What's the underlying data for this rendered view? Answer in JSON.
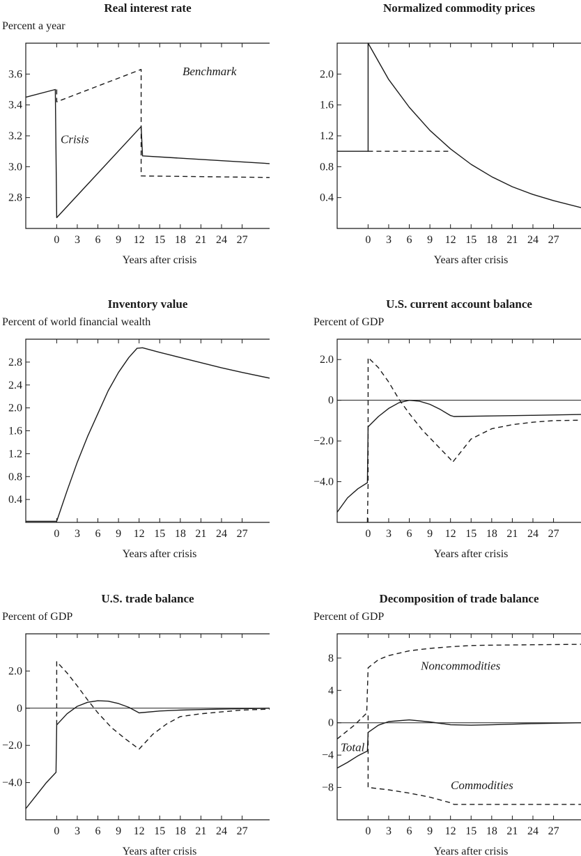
{
  "chart_data": [
    {
      "type": "line",
      "title": "Real interest rate",
      "subtitle": "Percent a year",
      "xlabel": "Years after crisis",
      "ylabel": "",
      "xlim": [
        -4.5,
        31
      ],
      "ylim": [
        2.6,
        3.8
      ],
      "xticks": [
        0,
        3,
        6,
        9,
        12,
        15,
        18,
        21,
        24,
        27
      ],
      "yticks": [
        2.8,
        3.0,
        3.2,
        3.4,
        3.6
      ],
      "ytick_labels": [
        "2.8",
        "3.0",
        "3.2",
        "3.4",
        "3.6"
      ],
      "zero_line": false,
      "grid": false,
      "annotations": [
        "Benchmark",
        "Crisis"
      ],
      "series": [
        {
          "name": "Crisis",
          "style": "solid",
          "points": [
            [
              -4.5,
              3.45
            ],
            [
              -0.2,
              3.5
            ],
            [
              0,
              2.67
            ],
            [
              12.3,
              3.26
            ],
            [
              12.5,
              3.07
            ],
            [
              31,
              3.02
            ]
          ]
        },
        {
          "name": "Benchmark",
          "style": "dashed",
          "points": [
            [
              0,
              3.5
            ],
            [
              0,
              3.42
            ],
            [
              12.3,
              3.63
            ],
            [
              12.3,
              2.94
            ],
            [
              31,
              2.93
            ]
          ]
        }
      ]
    },
    {
      "type": "line",
      "title": "Normalized commodity prices",
      "subtitle": "",
      "xlabel": "Years after crisis",
      "ylabel": "",
      "xlim": [
        -4.5,
        31
      ],
      "ylim": [
        0,
        2.4
      ],
      "xticks": [
        0,
        3,
        6,
        9,
        12,
        15,
        18,
        21,
        24,
        27
      ],
      "yticks": [
        0.4,
        0.8,
        1.2,
        1.6,
        2.0
      ],
      "ytick_labels": [
        "0.4",
        "0.8",
        "1.2",
        "1.6",
        "2.0"
      ],
      "zero_line": false,
      "grid": false,
      "annotations": [],
      "series": [
        {
          "name": "",
          "style": "solid",
          "points": [
            [
              -4.5,
              1.0
            ],
            [
              0,
              1.0
            ],
            [
              0,
              2.4
            ],
            [
              3,
              1.93
            ],
            [
              6,
              1.57
            ],
            [
              9,
              1.27
            ],
            [
              12,
              1.03
            ],
            [
              15,
              0.83
            ],
            [
              18,
              0.67
            ],
            [
              21,
              0.54
            ],
            [
              24,
              0.44
            ],
            [
              27,
              0.36
            ],
            [
              31,
              0.27
            ]
          ]
        },
        {
          "name": "",
          "style": "dashed",
          "points": [
            [
              0,
              1.0
            ],
            [
              12,
              1.0
            ]
          ]
        }
      ]
    },
    {
      "type": "line",
      "title": "Inventory value",
      "subtitle": "Percent of world financial wealth",
      "xlabel": "Years after crisis",
      "ylabel": "",
      "xlim": [
        -4.5,
        31
      ],
      "ylim": [
        0,
        3.2
      ],
      "xticks": [
        0,
        3,
        6,
        9,
        12,
        15,
        18,
        21,
        24,
        27
      ],
      "yticks": [
        0.4,
        0.8,
        1.2,
        1.6,
        2.0,
        2.4,
        2.8
      ],
      "ytick_labels": [
        "0.4",
        "0.8",
        "1.2",
        "1.6",
        "2.0",
        "2.4",
        "2.8"
      ],
      "zero_line": false,
      "grid": false,
      "annotations": [],
      "series": [
        {
          "name": "",
          "style": "solid",
          "points": [
            [
              -4.5,
              0.02
            ],
            [
              0,
              0.02
            ],
            [
              1.5,
              0.55
            ],
            [
              3,
              1.05
            ],
            [
              4.5,
              1.5
            ],
            [
              6,
              1.9
            ],
            [
              7.5,
              2.3
            ],
            [
              9,
              2.62
            ],
            [
              10.5,
              2.88
            ],
            [
              11.7,
              3.04
            ],
            [
              12.5,
              3.05
            ],
            [
              15,
              2.97
            ],
            [
              18,
              2.88
            ],
            [
              21,
              2.79
            ],
            [
              24,
              2.7
            ],
            [
              27,
              2.62
            ],
            [
              31,
              2.52
            ]
          ]
        }
      ]
    },
    {
      "type": "line",
      "title": "U.S. current account balance",
      "subtitle": "Percent of GDP",
      "xlabel": "Years after crisis",
      "ylabel": "",
      "xlim": [
        -4.5,
        31
      ],
      "ylim": [
        -6,
        3
      ],
      "xticks": [
        0,
        3,
        6,
        9,
        12,
        15,
        18,
        21,
        24,
        27
      ],
      "yticks": [
        -4,
        -2,
        0,
        2
      ],
      "ytick_labels": [
        "−4.0",
        "−2.0",
        "0",
        "2.0"
      ],
      "zero_line": true,
      "grid": false,
      "annotations": [],
      "series": [
        {
          "name": "",
          "style": "solid",
          "points": [
            [
              -4.5,
              -5.5
            ],
            [
              -3,
              -4.8
            ],
            [
              -1.5,
              -4.35
            ],
            [
              -0.1,
              -4.05
            ],
            [
              0,
              -1.3
            ],
            [
              1.5,
              -0.8
            ],
            [
              3,
              -0.4
            ],
            [
              4.5,
              -0.12
            ],
            [
              6,
              0.0
            ],
            [
              7.5,
              -0.05
            ],
            [
              9,
              -0.2
            ],
            [
              10.5,
              -0.45
            ],
            [
              12,
              -0.75
            ],
            [
              12.5,
              -0.8
            ],
            [
              18,
              -0.77
            ],
            [
              24,
              -0.74
            ],
            [
              31,
              -0.7
            ]
          ]
        },
        {
          "name": "",
          "style": "dashed",
          "points": [
            [
              -0.1,
              -6
            ],
            [
              0,
              -4.05
            ],
            [
              0,
              2.1
            ],
            [
              1.5,
              1.6
            ],
            [
              3,
              0.9
            ],
            [
              4.5,
              0.05
            ],
            [
              6,
              -0.65
            ],
            [
              8,
              -1.5
            ],
            [
              10,
              -2.2
            ],
            [
              12,
              -2.9
            ],
            [
              12.3,
              -3.05
            ],
            [
              15,
              -1.9
            ],
            [
              18,
              -1.4
            ],
            [
              21,
              -1.2
            ],
            [
              24,
              -1.08
            ],
            [
              27,
              -1.0
            ],
            [
              31,
              -0.98
            ]
          ]
        }
      ]
    },
    {
      "type": "line",
      "title": "U.S. trade balance",
      "subtitle": "Percent of GDP",
      "xlabel": "Years after crisis",
      "ylabel": "",
      "xlim": [
        -4.5,
        31
      ],
      "ylim": [
        -6,
        4
      ],
      "xticks": [
        0,
        3,
        6,
        9,
        12,
        15,
        18,
        21,
        24,
        27
      ],
      "yticks": [
        -4,
        -2,
        0,
        2
      ],
      "ytick_labels": [
        "−4.0",
        "−2.0",
        "0",
        "2.0"
      ],
      "zero_line": true,
      "grid": false,
      "annotations": [],
      "series": [
        {
          "name": "",
          "style": "solid",
          "points": [
            [
              -4.5,
              -5.4
            ],
            [
              -3,
              -4.7
            ],
            [
              -1.5,
              -4.0
            ],
            [
              -0.1,
              -3.45
            ],
            [
              0,
              -0.9
            ],
            [
              1.5,
              -0.3
            ],
            [
              3,
              0.1
            ],
            [
              4.5,
              0.32
            ],
            [
              6,
              0.4
            ],
            [
              7.5,
              0.38
            ],
            [
              9,
              0.25
            ],
            [
              10.5,
              0.05
            ],
            [
              12,
              -0.25
            ],
            [
              15,
              -0.15
            ],
            [
              18,
              -0.1
            ],
            [
              21,
              -0.07
            ],
            [
              24,
              -0.05
            ],
            [
              31,
              0.0
            ]
          ]
        },
        {
          "name": "",
          "style": "dashed",
          "points": [
            [
              0,
              -0.9
            ],
            [
              0,
              2.5
            ],
            [
              1.5,
              1.9
            ],
            [
              3,
              1.2
            ],
            [
              4.5,
              0.45
            ],
            [
              6,
              -0.25
            ],
            [
              8,
              -1.05
            ],
            [
              10,
              -1.65
            ],
            [
              12,
              -2.2
            ],
            [
              14,
              -1.4
            ],
            [
              16,
              -0.85
            ],
            [
              18,
              -0.45
            ],
            [
              21,
              -0.3
            ],
            [
              24,
              -0.2
            ],
            [
              27,
              -0.1
            ],
            [
              31,
              -0.05
            ]
          ]
        }
      ]
    },
    {
      "type": "line",
      "title": "Decomposition of trade balance",
      "subtitle": "Percent of GDP",
      "xlabel": "Years after crisis",
      "ylabel": "",
      "xlim": [
        -4.5,
        31
      ],
      "ylim": [
        -12,
        11
      ],
      "xticks": [
        0,
        3,
        6,
        9,
        12,
        15,
        18,
        21,
        24,
        27
      ],
      "yticks": [
        -8,
        -4,
        0,
        4,
        8
      ],
      "ytick_labels": [
        "−8",
        "−4",
        "0",
        "4",
        "8"
      ],
      "zero_line": true,
      "grid": false,
      "annotations": [
        "Noncommodities",
        "Total",
        "Commodities"
      ],
      "series": [
        {
          "name": "Noncommodities",
          "style": "dashed",
          "points": [
            [
              -4.5,
              -2.0
            ],
            [
              -2,
              -0.3
            ],
            [
              -0.2,
              1.2
            ],
            [
              0,
              6.8
            ],
            [
              1.5,
              7.8
            ],
            [
              3,
              8.3
            ],
            [
              6,
              8.9
            ],
            [
              9,
              9.2
            ],
            [
              12,
              9.4
            ],
            [
              15,
              9.55
            ],
            [
              18,
              9.6
            ],
            [
              24,
              9.65
            ],
            [
              31,
              9.7
            ]
          ]
        },
        {
          "name": "Total",
          "style": "solid",
          "points": [
            [
              -4.5,
              -5.6
            ],
            [
              -3,
              -4.9
            ],
            [
              -1.5,
              -4.1
            ],
            [
              -0.1,
              -3.5
            ],
            [
              0,
              -1.2
            ],
            [
              1.5,
              -0.3
            ],
            [
              3,
              0.15
            ],
            [
              6,
              0.35
            ],
            [
              9,
              0.1
            ],
            [
              12,
              -0.25
            ],
            [
              15,
              -0.3
            ],
            [
              18,
              -0.25
            ],
            [
              24,
              -0.1
            ],
            [
              31,
              0.0
            ]
          ]
        },
        {
          "name": "Commodities",
          "style": "dashed",
          "points": [
            [
              0,
              0.9
            ],
            [
              0,
              -8.0
            ],
            [
              3,
              -8.3
            ],
            [
              6,
              -8.7
            ],
            [
              9,
              -9.2
            ],
            [
              12,
              -9.9
            ],
            [
              12.5,
              -10.1
            ],
            [
              18,
              -10.1
            ],
            [
              24,
              -10.1
            ],
            [
              31,
              -10.1
            ]
          ]
        }
      ]
    }
  ]
}
